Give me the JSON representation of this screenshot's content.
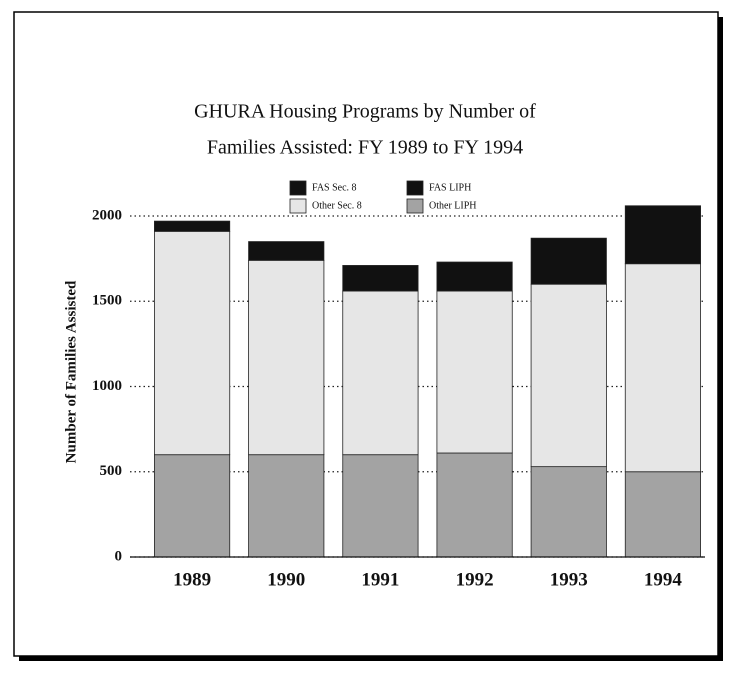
{
  "chart_data": {
    "type": "bar",
    "stacked": true,
    "title": [
      "GHURA Housing Programs by Number of",
      "Families Assisted:  FY 1989 to FY 1994"
    ],
    "y_label": "Number of Families Assisted",
    "categories": [
      "1989",
      "1990",
      "1991",
      "1992",
      "1993",
      "1994"
    ],
    "series": [
      {
        "name": "FAS Sec. 8",
        "color": "#111111",
        "values": [
          60,
          110,
          150,
          170,
          270,
          340
        ]
      },
      {
        "name": "FAS LIPH",
        "color": "#111111",
        "values": [
          null,
          null,
          null,
          null,
          null,
          null
        ]
      },
      {
        "name": "Other Sec. 8",
        "color": "#e6e6e6",
        "values": [
          1310,
          1140,
          960,
          950,
          1070,
          1220
        ]
      },
      {
        "name": "Other LIPH",
        "color": "#a3a3a3",
        "values": [
          600,
          600,
          600,
          610,
          530,
          500
        ]
      }
    ],
    "ylim": [
      0,
      2000
    ],
    "yticks": [
      0,
      500,
      1000,
      1500,
      2000
    ],
    "grid": true
  }
}
